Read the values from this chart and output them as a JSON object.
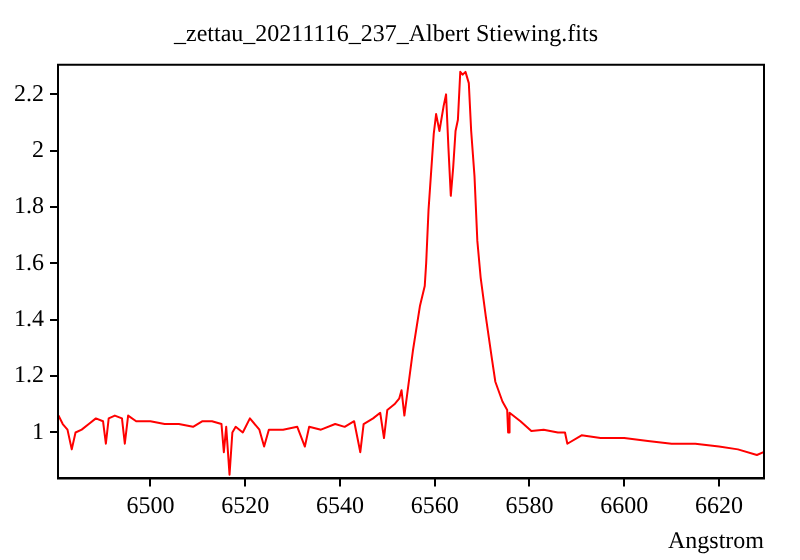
{
  "chart_data": {
    "type": "line",
    "title": "_zettau_20211116_237_Albert Stiewing.fits",
    "xlabel": "Angstrom",
    "xlim": [
      6480.5,
      6629.5
    ],
    "ylim": [
      0.837,
      2.305
    ],
    "xticks": [
      6500,
      6520,
      6540,
      6560,
      6580,
      6600,
      6620
    ],
    "yticks": [
      1,
      1.2,
      1.4,
      1.6,
      1.8,
      2,
      2.2
    ],
    "grid": false,
    "legend": false,
    "marker": "none",
    "line_style": "solid",
    "x": [
      6480.6,
      6481.5,
      6482.5,
      6483.4,
      6484.2,
      6485.5,
      6487,
      6488.5,
      6490,
      6490.6,
      6491.2,
      6492.5,
      6494,
      6494.6,
      6495.3,
      6497,
      6500,
      6503,
      6506,
      6509,
      6511,
      6513,
      6515,
      6515.5,
      6516,
      6516.7,
      6517.3,
      6518,
      6519.5,
      6521,
      6523,
      6524,
      6525,
      6528,
      6531,
      6532.6,
      6533.5,
      6536,
      6539,
      6541,
      6543,
      6544.3,
      6545,
      6547,
      6548.5,
      6549.3,
      6550,
      6551.5,
      6552.5,
      6553,
      6553.6,
      6555.4,
      6556.9,
      6557.9,
      6558.2,
      6558.7,
      6559.8,
      6560.3,
      6561,
      6561.9,
      6562.4,
      6562.9,
      6563.4,
      6563.9,
      6564.4,
      6564.9,
      6565.4,
      6565.9,
      6566.5,
      6567.2,
      6567.7,
      6568.4,
      6569,
      6569.7,
      6570.8,
      6572,
      6572.8,
      6574.3,
      6575.3,
      6575.5,
      6575.8,
      6578.1,
      6580.4,
      6583,
      6586,
      6587.5,
      6588,
      6591,
      6595,
      6600,
      6605,
      6610,
      6615,
      6620,
      6624,
      6628,
      6629.4
    ],
    "values": [
      1.06,
      1.03,
      1.01,
      0.94,
      1.0,
      1.01,
      1.03,
      1.05,
      1.04,
      0.96,
      1.05,
      1.06,
      1.05,
      0.96,
      1.06,
      1.04,
      1.04,
      1.03,
      1.03,
      1.02,
      1.04,
      1.04,
      1.03,
      0.93,
      1.02,
      0.85,
      1.0,
      1.02,
      1.0,
      1.05,
      1.01,
      0.95,
      1.01,
      1.01,
      1.02,
      0.95,
      1.02,
      1.01,
      1.03,
      1.02,
      1.04,
      0.93,
      1.03,
      1.05,
      1.07,
      0.98,
      1.08,
      1.1,
      1.12,
      1.15,
      1.06,
      1.29,
      1.45,
      1.52,
      1.6,
      1.79,
      2.06,
      2.13,
      2.07,
      2.16,
      2.2,
      2.01,
      1.84,
      1.94,
      2.07,
      2.11,
      2.28,
      2.27,
      2.28,
      2.24,
      2.07,
      1.91,
      1.68,
      1.55,
      1.41,
      1.27,
      1.18,
      1.11,
      1.08,
      1.0,
      1.07,
      1.04,
      1.005,
      1.01,
      1.0,
      1.0,
      0.96,
      0.99,
      0.98,
      0.98,
      0.97,
      0.96,
      0.96,
      0.95,
      0.94,
      0.92,
      0.93
    ],
    "color": "#ff0000"
  }
}
